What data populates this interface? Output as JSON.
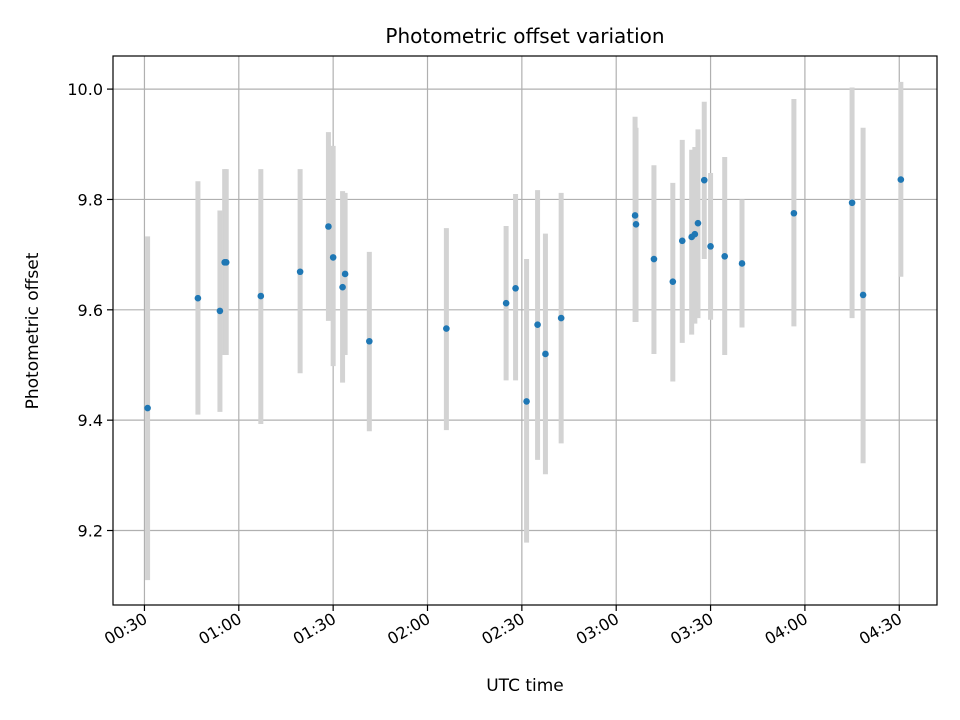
{
  "chart_data": {
    "type": "scatter",
    "title": "Photometric offset variation",
    "xlabel": "UTC time",
    "ylabel": "Photometric offset",
    "x_unit": "minutes",
    "xlim": [
      20,
      282
    ],
    "ylim": [
      9.065,
      10.06
    ],
    "grid": true,
    "x_ticks": [
      {
        "value": 30,
        "label": "00:30"
      },
      {
        "value": 60,
        "label": "01:00"
      },
      {
        "value": 90,
        "label": "01:30"
      },
      {
        "value": 120,
        "label": "02:00"
      },
      {
        "value": 150,
        "label": "02:30"
      },
      {
        "value": 180,
        "label": "03:00"
      },
      {
        "value": 210,
        "label": "03:30"
      },
      {
        "value": 240,
        "label": "04:00"
      },
      {
        "value": 270,
        "label": "04:30"
      }
    ],
    "y_ticks": [
      {
        "value": 9.2,
        "label": "9.2"
      },
      {
        "value": 9.4,
        "label": "9.4"
      },
      {
        "value": 9.6,
        "label": "9.6"
      },
      {
        "value": 9.8,
        "label": "9.8"
      },
      {
        "value": 10.0,
        "label": "10.0"
      }
    ],
    "points": [
      {
        "x": 31.0,
        "y": 9.422,
        "lo": 9.11,
        "hi": 9.733
      },
      {
        "x": 47.0,
        "y": 9.621,
        "lo": 9.41,
        "hi": 9.833
      },
      {
        "x": 54.0,
        "y": 9.598,
        "lo": 9.415,
        "hi": 9.78
      },
      {
        "x": 55.5,
        "y": 9.686,
        "lo": 9.518,
        "hi": 9.855
      },
      {
        "x": 56.0,
        "y": 9.686,
        "lo": 9.518,
        "hi": 9.855
      },
      {
        "x": 67.0,
        "y": 9.625,
        "lo": 9.393,
        "hi": 9.855
      },
      {
        "x": 79.5,
        "y": 9.669,
        "lo": 9.485,
        "hi": 9.855
      },
      {
        "x": 88.5,
        "y": 9.751,
        "lo": 9.58,
        "hi": 9.922
      },
      {
        "x": 90.0,
        "y": 9.695,
        "lo": 9.498,
        "hi": 9.897
      },
      {
        "x": 93.0,
        "y": 9.641,
        "lo": 9.468,
        "hi": 9.815
      },
      {
        "x": 93.8,
        "y": 9.665,
        "lo": 9.518,
        "hi": 9.812
      },
      {
        "x": 101.5,
        "y": 9.543,
        "lo": 9.38,
        "hi": 9.705
      },
      {
        "x": 126.0,
        "y": 9.566,
        "lo": 9.382,
        "hi": 9.748
      },
      {
        "x": 145.0,
        "y": 9.612,
        "lo": 9.472,
        "hi": 9.752
      },
      {
        "x": 148.0,
        "y": 9.639,
        "lo": 9.472,
        "hi": 9.81
      },
      {
        "x": 151.5,
        "y": 9.434,
        "lo": 9.178,
        "hi": 9.692
      },
      {
        "x": 155.0,
        "y": 9.573,
        "lo": 9.328,
        "hi": 9.817
      },
      {
        "x": 157.5,
        "y": 9.52,
        "lo": 9.302,
        "hi": 9.738
      },
      {
        "x": 162.5,
        "y": 9.585,
        "lo": 9.358,
        "hi": 9.812
      },
      {
        "x": 186.0,
        "y": 9.771,
        "lo": 9.578,
        "hi": 9.95
      },
      {
        "x": 186.3,
        "y": 9.755,
        "lo": 9.578,
        "hi": 9.93
      },
      {
        "x": 192.0,
        "y": 9.692,
        "lo": 9.52,
        "hi": 9.862
      },
      {
        "x": 198.0,
        "y": 9.651,
        "lo": 9.47,
        "hi": 9.83
      },
      {
        "x": 201.0,
        "y": 9.725,
        "lo": 9.54,
        "hi": 9.908
      },
      {
        "x": 204.0,
        "y": 9.732,
        "lo": 9.555,
        "hi": 9.89
      },
      {
        "x": 205.0,
        "y": 9.737,
        "lo": 9.575,
        "hi": 9.895
      },
      {
        "x": 206.0,
        "y": 9.757,
        "lo": 9.585,
        "hi": 9.927
      },
      {
        "x": 208.0,
        "y": 9.835,
        "lo": 9.692,
        "hi": 9.977
      },
      {
        "x": 210.0,
        "y": 9.715,
        "lo": 9.582,
        "hi": 9.848
      },
      {
        "x": 214.5,
        "y": 9.697,
        "lo": 9.518,
        "hi": 9.877
      },
      {
        "x": 220.0,
        "y": 9.684,
        "lo": 9.568,
        "hi": 9.8
      },
      {
        "x": 236.5,
        "y": 9.775,
        "lo": 9.57,
        "hi": 9.982
      },
      {
        "x": 255.0,
        "y": 9.794,
        "lo": 9.585,
        "hi": 10.003
      },
      {
        "x": 258.5,
        "y": 9.627,
        "lo": 9.322,
        "hi": 9.93
      },
      {
        "x": 270.5,
        "y": 9.836,
        "lo": 9.66,
        "hi": 10.013
      }
    ]
  }
}
